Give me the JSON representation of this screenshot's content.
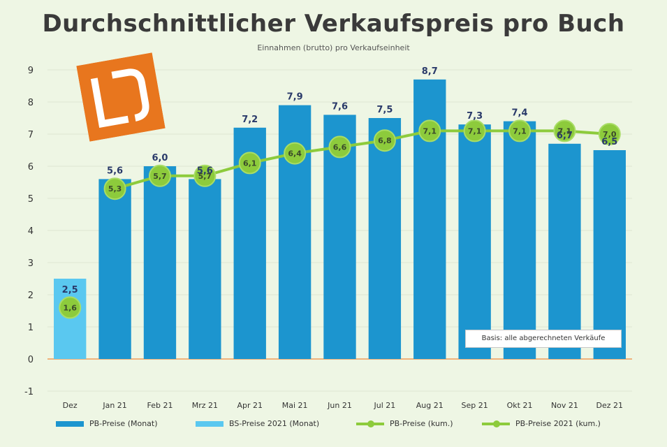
{
  "chart_data": {
    "type": "bar",
    "title": "Durchschnittlicher Verkaufspreis pro Buch",
    "subtitle": "Einnahmen (brutto) pro Verkaufseinheit",
    "categories": [
      "Dez",
      "Jan 21",
      "Feb 21",
      "Mrz 21",
      "Apr 21",
      "Mai 21",
      "Jun 21",
      "Jul 21",
      "Aug 21",
      "Sep 21",
      "Okt 21",
      "Nov 21",
      "Dez 21"
    ],
    "ylim": [
      -1,
      9
    ],
    "yticks": [
      -1,
      0,
      1,
      2,
      3,
      4,
      5,
      6,
      7,
      8,
      9
    ],
    "grid": true,
    "legend_position": "bottom",
    "series": [
      {
        "name": "PB-Preise (Monat)",
        "kind": "bar",
        "color": "#1c95cf",
        "values": [
          null,
          5.6,
          6.0,
          5.6,
          7.2,
          7.9,
          7.6,
          7.5,
          8.7,
          7.3,
          7.4,
          6.7,
          6.5
        ],
        "labels": [
          "",
          "5,6",
          "6,0",
          "5,6",
          "7,2",
          "7,9",
          "7,6",
          "7,5",
          "8,7",
          "7,3",
          "7,4",
          "6,7",
          "6,5"
        ]
      },
      {
        "name": "BS-Preise 2021 (Monat)",
        "kind": "bar",
        "color": "#5ac8f0",
        "values": [
          2.5,
          null,
          null,
          null,
          null,
          null,
          null,
          null,
          null,
          null,
          null,
          null,
          null
        ],
        "labels": [
          "2,5",
          "",
          "",
          "",
          "",
          "",
          "",
          "",
          "",
          "",
          "",
          "",
          ""
        ]
      },
      {
        "name": "PB-Preise (kum.)",
        "kind": "line",
        "color": "#8dcb3c",
        "values": [
          null,
          5.3,
          5.7,
          5.7,
          6.1,
          6.4,
          6.6,
          6.8,
          7.1,
          7.1,
          7.1,
          7.1,
          7.0
        ],
        "labels": [
          "",
          "5,3",
          "5,7",
          "5,7",
          "6,1",
          "6,4",
          "6,6",
          "6,8",
          "7,1",
          "7,1",
          "7,1",
          "7,1",
          "7,0"
        ]
      },
      {
        "name": "PB-Preise 2021 (kum.)",
        "kind": "point",
        "color": "#8dcb3c",
        "values": [
          1.6,
          null,
          null,
          null,
          null,
          null,
          null,
          null,
          null,
          null,
          null,
          null,
          null
        ],
        "labels": [
          "1,6",
          "",
          "",
          "",
          "",
          "",
          "",
          "",
          "",
          "",
          "",
          "",
          ""
        ]
      }
    ],
    "annotation": "Basis: alle abgerechneten Verkäufe"
  }
}
